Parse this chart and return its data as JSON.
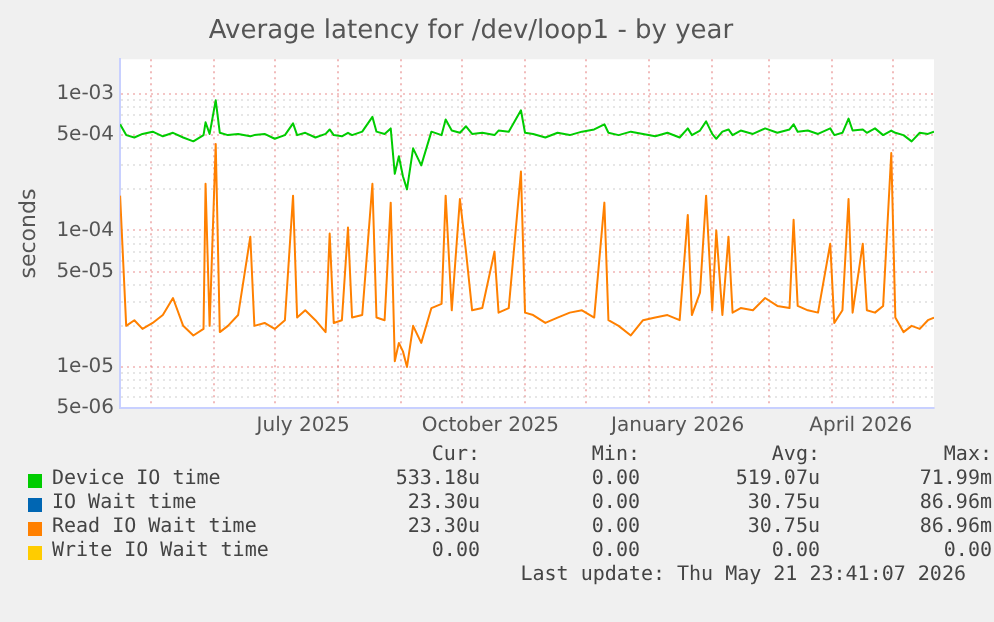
{
  "chart_data": {
    "type": "line",
    "title": "Average latency for /dev/loop1 - by year",
    "ylabel": "seconds",
    "log": true,
    "grid": true,
    "legend": "bottom",
    "marker": "none",
    "line_style": "solid",
    "x": [
      "2025-04-16",
      "2025-04-19",
      "2025-04-23",
      "2025-04-27",
      "2025-05-02",
      "2025-05-07",
      "2025-05-12",
      "2025-05-17",
      "2025-05-22",
      "2025-05-27",
      "2025-05-28",
      "2025-05-30",
      "2025-06-02",
      "2025-06-04",
      "2025-06-08",
      "2025-06-13",
      "2025-06-19",
      "2025-06-21",
      "2025-06-26",
      "2025-07-01",
      "2025-07-06",
      "2025-07-10",
      "2025-07-12",
      "2025-07-16",
      "2025-07-21",
      "2025-07-26",
      "2025-07-28",
      "2025-07-30",
      "2025-08-03",
      "2025-08-06",
      "2025-08-08",
      "2025-08-13",
      "2025-08-18",
      "2025-08-20",
      "2025-08-24",
      "2025-08-27",
      "2025-08-29",
      "2025-08-31",
      "2025-09-02",
      "2025-09-04",
      "2025-09-07",
      "2025-09-11",
      "2025-09-16",
      "2025-09-21",
      "2025-09-23",
      "2025-09-26",
      "2025-09-30",
      "2025-10-03",
      "2025-10-06",
      "2025-10-11",
      "2025-10-17",
      "2025-10-19",
      "2025-10-24",
      "2025-10-30",
      "2025-11-01",
      "2025-11-05",
      "2025-11-11",
      "2025-11-17",
      "2025-11-23",
      "2025-11-29",
      "2025-12-05",
      "2025-12-10",
      "2025-12-12",
      "2025-12-17",
      "2025-12-23",
      "2025-12-29",
      "2026-01-04",
      "2026-01-10",
      "2026-01-16",
      "2026-01-20",
      "2026-01-22",
      "2026-01-26",
      "2026-01-29",
      "2026-02-01",
      "2026-02-03",
      "2026-02-06",
      "2026-02-09",
      "2026-02-11",
      "2026-02-15",
      "2026-02-21",
      "2026-02-27",
      "2026-03-05",
      "2026-03-11",
      "2026-03-13",
      "2026-03-15",
      "2026-03-20",
      "2026-03-25",
      "2026-03-31",
      "2026-04-02",
      "2026-04-06",
      "2026-04-09",
      "2026-04-11",
      "2026-04-16",
      "2026-04-18",
      "2026-04-22",
      "2026-04-26",
      "2026-04-30",
      "2026-05-02",
      "2026-05-06",
      "2026-05-10",
      "2026-05-14",
      "2026-05-18",
      "2026-05-21"
    ],
    "xlim": [
      "2025-04-16",
      "2026-05-21"
    ],
    "xticks": [
      {
        "value": "2025-05-01",
        "label": null
      },
      {
        "value": "2025-06-01",
        "label": null
      },
      {
        "value": "2025-07-01",
        "label": null
      },
      {
        "value": "2025-07-15",
        "label": "July 2025"
      },
      {
        "value": "2025-08-01",
        "label": null
      },
      {
        "value": "2025-09-01",
        "label": null
      },
      {
        "value": "2025-10-01",
        "label": null
      },
      {
        "value": "2025-10-15",
        "label": "October 2025"
      },
      {
        "value": "2025-11-01",
        "label": null
      },
      {
        "value": "2025-12-01",
        "label": null
      },
      {
        "value": "2026-01-01",
        "label": null
      },
      {
        "value": "2026-01-15",
        "label": "January 2026"
      },
      {
        "value": "2026-02-01",
        "label": null
      },
      {
        "value": "2026-03-01",
        "label": null
      },
      {
        "value": "2026-04-01",
        "label": null
      },
      {
        "value": "2026-04-15",
        "label": "April 2026"
      },
      {
        "value": "2026-05-01",
        "label": null
      }
    ],
    "ylim": [
      5e-06,
      0.0018
    ],
    "yticks": [
      {
        "value": 5e-06,
        "label": "5e-06"
      },
      {
        "value": 6e-06,
        "label": null
      },
      {
        "value": 7e-06,
        "label": null
      },
      {
        "value": 8e-06,
        "label": null
      },
      {
        "value": 9e-06,
        "label": null
      },
      {
        "value": 1e-05,
        "label": "1e-05"
      },
      {
        "value": 2e-05,
        "label": null
      },
      {
        "value": 3e-05,
        "label": null
      },
      {
        "value": 4e-05,
        "label": null
      },
      {
        "value": 5e-05,
        "label": "5e-05"
      },
      {
        "value": 6e-05,
        "label": null
      },
      {
        "value": 7e-05,
        "label": null
      },
      {
        "value": 8e-05,
        "label": null
      },
      {
        "value": 9e-05,
        "label": null
      },
      {
        "value": 0.0001,
        "label": "1e-04"
      },
      {
        "value": 0.0002,
        "label": null
      },
      {
        "value": 0.0003,
        "label": null
      },
      {
        "value": 0.0004,
        "label": null
      },
      {
        "value": 0.0005,
        "label": "5e-04"
      },
      {
        "value": 0.0006,
        "label": null
      },
      {
        "value": 0.0007,
        "label": null
      },
      {
        "value": 0.0008,
        "label": null
      },
      {
        "value": 0.0009,
        "label": null
      },
      {
        "value": 0.001,
        "label": "1e-03"
      }
    ],
    "series": [
      {
        "name": "Device IO time",
        "color": "#00cc00",
        "values": [
          0.0006,
          0.0005,
          0.00048,
          0.00051,
          0.00053,
          0.00049,
          0.00052,
          0.00048,
          0.00045,
          0.0005,
          0.00062,
          0.00051,
          0.0009,
          0.00052,
          0.0005,
          0.00051,
          0.00049,
          0.0005,
          0.00051,
          0.00047,
          0.0005,
          0.00061,
          0.0005,
          0.00052,
          0.00048,
          0.00051,
          0.00055,
          0.0005,
          0.00049,
          0.00052,
          0.0005,
          0.00053,
          0.00068,
          0.00053,
          0.00051,
          0.00056,
          0.00026,
          0.00035,
          0.00025,
          0.0002,
          0.0004,
          0.0003,
          0.00053,
          0.0005,
          0.00065,
          0.00054,
          0.00052,
          0.00058,
          0.00051,
          0.00052,
          0.0005,
          0.00054,
          0.00053,
          0.00076,
          0.00052,
          0.00051,
          0.00048,
          0.00052,
          0.0005,
          0.00053,
          0.00055,
          0.0006,
          0.00052,
          0.0005,
          0.00053,
          0.00051,
          0.00049,
          0.00052,
          0.00048,
          0.00056,
          0.0005,
          0.00054,
          0.00063,
          0.00051,
          0.00047,
          0.00053,
          0.00055,
          0.0005,
          0.00054,
          0.00051,
          0.00056,
          0.00052,
          0.00055,
          0.0006,
          0.00053,
          0.00054,
          0.00051,
          0.00056,
          0.0005,
          0.00052,
          0.00066,
          0.00054,
          0.00055,
          0.00052,
          0.00056,
          0.0005,
          0.00054,
          0.00052,
          0.0005,
          0.00045,
          0.00052,
          0.00051,
          0.00053
        ]
      },
      {
        "name": "IO Wait time",
        "color": "#0066b3",
        "values": [
          null,
          null,
          null,
          null,
          null,
          null,
          null,
          null,
          null,
          null,
          null,
          null,
          null,
          null,
          null,
          null,
          null,
          null,
          null,
          null,
          null,
          null,
          null,
          null,
          null,
          null,
          null,
          null,
          null,
          null,
          null,
          null,
          null,
          null,
          null,
          null,
          null,
          null,
          null,
          null,
          null,
          null,
          null,
          null,
          null,
          null,
          null,
          null,
          null,
          null,
          null,
          null,
          null,
          null,
          null,
          null,
          null,
          null,
          null,
          null,
          null,
          null,
          null,
          null,
          null,
          null,
          null,
          null,
          null,
          null,
          null,
          null,
          null,
          null,
          null,
          null,
          null,
          null,
          null,
          null,
          null,
          null,
          null,
          null,
          null,
          null,
          null,
          null,
          null,
          null,
          null,
          null,
          null,
          null,
          null,
          null,
          null,
          null,
          null,
          null,
          null,
          null,
          null
        ]
      },
      {
        "name": "Read IO Wait time",
        "color": "#ff8000",
        "values": [
          0.00018,
          2e-05,
          2.2e-05,
          1.9e-05,
          2.1e-05,
          2.4e-05,
          3.2e-05,
          2e-05,
          1.7e-05,
          1.9e-05,
          0.00022,
          2e-05,
          0.00043,
          1.8e-05,
          2e-05,
          2.4e-05,
          9e-05,
          2e-05,
          2.1e-05,
          1.9e-05,
          2.2e-05,
          0.00018,
          2.3e-05,
          2.6e-05,
          2.2e-05,
          1.8e-05,
          9.5e-05,
          2.1e-05,
          2.2e-05,
          0.000105,
          2.3e-05,
          2.4e-05,
          0.00022,
          2.3e-05,
          2.2e-05,
          0.00016,
          1.1e-05,
          1.5e-05,
          1.3e-05,
          1e-05,
          2e-05,
          1.5e-05,
          2.7e-05,
          2.9e-05,
          0.00018,
          2.6e-05,
          0.00017,
          7e-05,
          2.6e-05,
          2.7e-05,
          7e-05,
          2.5e-05,
          2.7e-05,
          0.00027,
          2.5e-05,
          2.4e-05,
          2.1e-05,
          2.3e-05,
          2.5e-05,
          2.6e-05,
          2.3e-05,
          0.00016,
          2.2e-05,
          2e-05,
          1.7e-05,
          2.2e-05,
          2.3e-05,
          2.4e-05,
          2.2e-05,
          0.00013,
          2.4e-05,
          3.5e-05,
          0.00018,
          2.6e-05,
          0.0001,
          2.4e-05,
          9e-05,
          2.5e-05,
          2.7e-05,
          2.6e-05,
          3.2e-05,
          2.8e-05,
          2.7e-05,
          0.00012,
          2.8e-05,
          2.6e-05,
          2.5e-05,
          8e-05,
          2.1e-05,
          2.6e-05,
          0.00017,
          2.5e-05,
          8e-05,
          2.6e-05,
          2.5e-05,
          2.8e-05,
          0.00037,
          2.3e-05,
          1.8e-05,
          2e-05,
          1.9e-05,
          2.2e-05,
          2.3e-05
        ]
      },
      {
        "name": "Write IO Wait time",
        "color": "#ffcc00",
        "values": [
          null,
          null,
          null,
          null,
          null,
          null,
          null,
          null,
          null,
          null,
          null,
          null,
          null,
          null,
          null,
          null,
          null,
          null,
          null,
          null,
          null,
          null,
          null,
          null,
          null,
          null,
          null,
          null,
          null,
          null,
          null,
          null,
          null,
          null,
          null,
          null,
          null,
          null,
          null,
          null,
          null,
          null,
          null,
          null,
          null,
          null,
          null,
          null,
          null,
          null,
          null,
          null,
          null,
          null,
          null,
          null,
          null,
          null,
          null,
          null,
          null,
          null,
          null,
          null,
          null,
          null,
          null,
          null,
          null,
          null,
          null,
          null,
          null,
          null,
          null,
          null,
          null,
          null,
          null,
          null,
          null,
          null,
          null,
          null,
          null,
          null,
          null,
          null,
          null,
          null,
          null,
          null,
          null,
          null,
          null,
          null,
          null,
          null,
          null,
          null,
          null,
          null,
          null
        ]
      }
    ],
    "annotations": [
      "Cur:",
      "Min:",
      "Avg:",
      "Max:",
      "533.18u",
      "0.00",
      "519.07u",
      "71.99m",
      "23.30u",
      "0.00",
      "30.75u",
      "86.96m",
      "23.30u",
      "0.00",
      "30.75u",
      "86.96m",
      "0.00",
      "0.00",
      "0.00",
      "0.00",
      "Last update: Thu May 21 23:41:07 2026"
    ]
  }
}
